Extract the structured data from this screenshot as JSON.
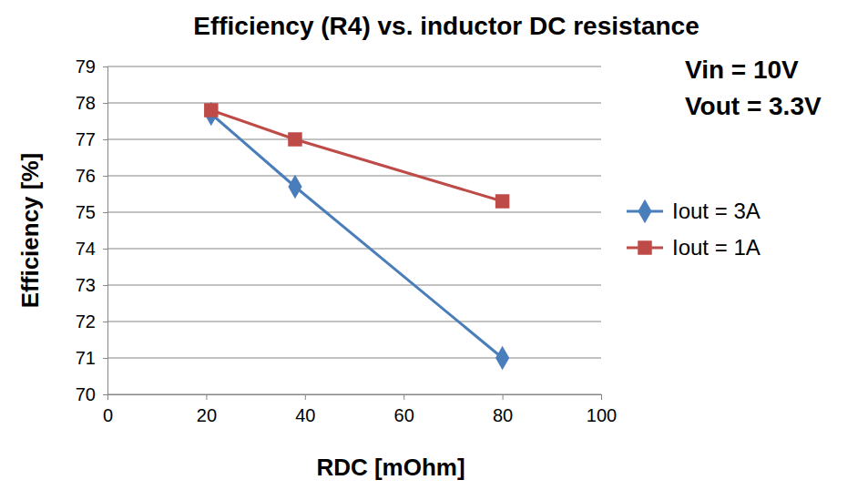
{
  "chart_data": {
    "type": "line",
    "title": "Efficiency (R4) vs. inductor DC resistance",
    "x_label": "RDC [mOhm]",
    "y_label": "Efficiency [%]",
    "annotations": [
      "Vin = 10V",
      "Vout = 3.3V"
    ],
    "x": [
      21,
      38,
      80
    ],
    "series": [
      {
        "name": "Iout = 3A",
        "color": "#4a7ebb",
        "marker": "diamond",
        "values": [
          77.7,
          75.7,
          71.0
        ]
      },
      {
        "name": "Iout = 1A",
        "color": "#be4b48",
        "marker": "square",
        "values": [
          77.8,
          77.0,
          75.3
        ]
      }
    ],
    "xlim": [
      0,
      100
    ],
    "xticks": [
      0,
      20,
      40,
      60,
      80,
      100
    ],
    "ylim": [
      70,
      79
    ],
    "yticks": [
      70,
      71,
      72,
      73,
      74,
      75,
      76,
      77,
      78,
      79
    ],
    "grid": true,
    "legend": "right"
  }
}
